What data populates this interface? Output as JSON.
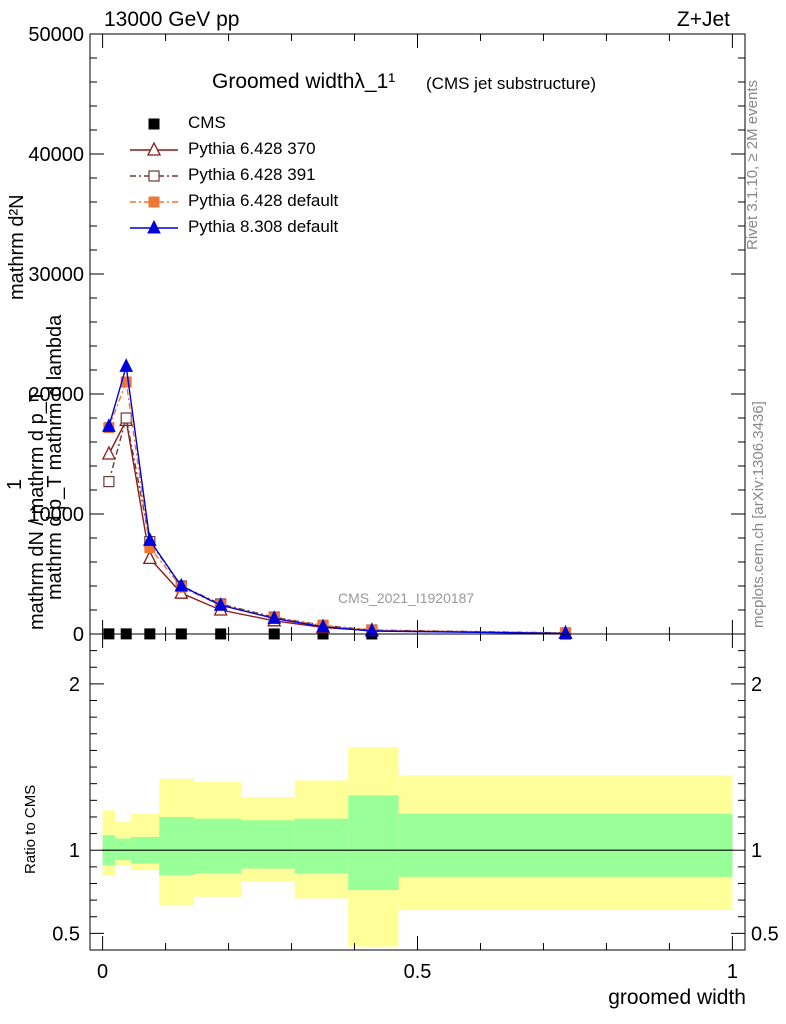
{
  "header": {
    "energy_label": "13000 GeV pp",
    "process_label": "Z+Jet"
  },
  "side_labels": {
    "rivet": "Rivet 3.1.10, ≥ 2M events",
    "mcplots": "mcplots.cern.ch [arXiv:1306.3436]"
  },
  "chart_data": [
    {
      "type": "line",
      "title": "Groomed widthλ_1¹",
      "subtitle": "(CMS jet substructure)",
      "analysis_label": "CMS_2021_I1920187",
      "ylabel": "1 / mathrm dN / mathrm d p_T mathrm d²N / mathrm d p_T mathrm d lambda",
      "ylabel_numerator": "mathrm d²N",
      "ylabel_denominator": "mathrm d p_T mathrm d lambda",
      "ylabel_outer_num": "1",
      "ylabel_outer_den": "mathrm dN / mathrm d p_T",
      "ylim": [
        0,
        50000
      ],
      "xlim": [
        -0.02,
        1.02
      ],
      "yticks": [
        0,
        10000,
        20000,
        30000,
        40000,
        50000
      ],
      "ytick_labels": [
        "0",
        "10000",
        "20000",
        "30000",
        "40000",
        "50000"
      ],
      "x": [
        0.01,
        0.0375,
        0.075,
        0.125,
        0.1875,
        0.2725,
        0.35,
        0.4275,
        0.735
      ],
      "series": [
        {
          "name": "CMS",
          "color": "#000000",
          "marker": "square-filled",
          "values": [
            10,
            10,
            8,
            6,
            5,
            4,
            3,
            2,
            1
          ]
        },
        {
          "name": "Pythia 6.428 370",
          "color": "#8b1a1a",
          "marker": "triangle-open",
          "dash": "",
          "values": [
            15000,
            17800,
            6300,
            3400,
            2000,
            1100,
            550,
            280,
            60
          ]
        },
        {
          "name": "Pythia 6.428 391",
          "color": "#6b3a3a",
          "marker": "square-open",
          "dash": "6,3,2,3",
          "values": [
            12700,
            18000,
            7700,
            4000,
            2500,
            1400,
            720,
            330,
            90
          ]
        },
        {
          "name": "Pythia 6.428 default",
          "color": "#ee7733",
          "marker": "square-filled",
          "dash": "6,3,2,3",
          "values": [
            17200,
            21000,
            7200,
            3900,
            2400,
            1350,
            700,
            310,
            80
          ]
        },
        {
          "name": "Pythia 8.308 default",
          "color": "#0000dd",
          "marker": "triangle-filled",
          "dash": "",
          "values": [
            17300,
            22300,
            7800,
            4000,
            2400,
            1300,
            600,
            250,
            50
          ]
        }
      ]
    },
    {
      "type": "area",
      "ylabel": "Ratio to CMS",
      "xlabel": "groomed width",
      "ylim": [
        0.4,
        2.3
      ],
      "xlim": [
        -0.02,
        1.02
      ],
      "yticks": [
        0.5,
        1,
        2
      ],
      "ytick_labels": [
        "0.5",
        "1",
        "2"
      ],
      "xticks": [
        0,
        0.5,
        1
      ],
      "xtick_labels": [
        "0",
        "0.5",
        "1"
      ],
      "bin_edges": [
        0.0,
        0.02,
        0.045,
        0.09,
        0.145,
        0.22,
        0.305,
        0.39,
        0.47,
        1.0
      ],
      "inner_band": {
        "color": "#99ff99",
        "low": [
          0.91,
          0.94,
          0.92,
          0.85,
          0.86,
          0.89,
          0.86,
          0.76,
          0.84
        ],
        "high": [
          1.09,
          1.07,
          1.08,
          1.2,
          1.19,
          1.18,
          1.19,
          1.33,
          1.22
        ]
      },
      "outer_band": {
        "color": "#ffff99",
        "low": [
          0.85,
          0.91,
          0.88,
          0.67,
          0.72,
          0.81,
          0.71,
          0.42,
          0.64
        ],
        "high": [
          1.24,
          1.17,
          1.22,
          1.43,
          1.41,
          1.32,
          1.42,
          1.62,
          1.45
        ]
      },
      "reference": 1
    }
  ]
}
